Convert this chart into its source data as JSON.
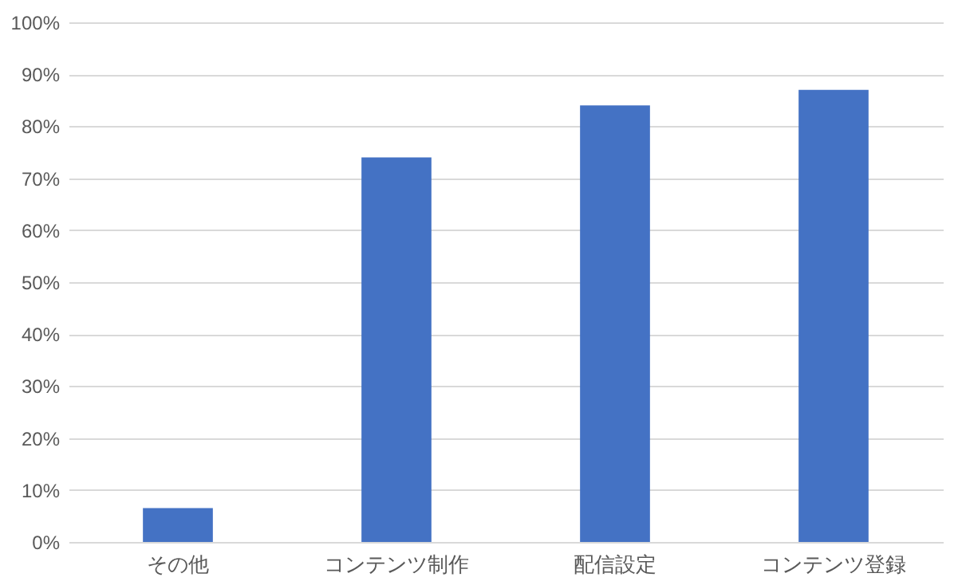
{
  "chart_data": {
    "type": "bar",
    "categories": [
      "その他",
      "コンテンツ制作",
      "配信設定",
      "コンテンツ登録"
    ],
    "values": [
      6.5,
      74,
      84,
      87
    ],
    "color": "#4472c4",
    "ylim": [
      0,
      100
    ],
    "yticks": [
      {
        "value": 0,
        "label": "0%"
      },
      {
        "value": 10,
        "label": "10%"
      },
      {
        "value": 20,
        "label": "20%"
      },
      {
        "value": 30,
        "label": "30%"
      },
      {
        "value": 40,
        "label": "40%"
      },
      {
        "value": 50,
        "label": "50%"
      },
      {
        "value": 60,
        "label": "60%"
      },
      {
        "value": 70,
        "label": "70%"
      },
      {
        "value": 80,
        "label": "80%"
      },
      {
        "value": 90,
        "label": "90%"
      },
      {
        "value": 100,
        "label": "100%"
      }
    ],
    "grid": "y"
  }
}
